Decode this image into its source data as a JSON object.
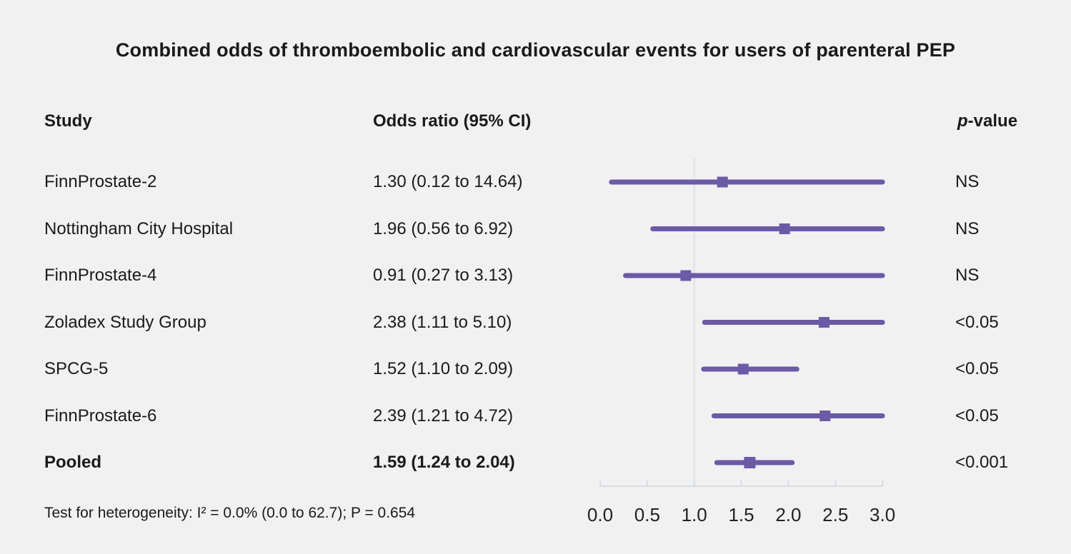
{
  "title": "Combined odds of thromboembolic and cardiovascular events for users of parenteral PEP",
  "columns": {
    "study": "Study",
    "odds_ratio": "Odds ratio (95% CI)",
    "p_italic": "p",
    "p_rest": "-value"
  },
  "rows": [
    {
      "study": "FinnProstate-2",
      "or_ci": "1.30 (0.12 to 14.64)",
      "p": "NS",
      "bold": false
    },
    {
      "study": "Nottingham City Hospital",
      "or_ci": "1.96 (0.56 to 6.92)",
      "p": "NS",
      "bold": false
    },
    {
      "study": "FinnProstate-4",
      "or_ci": "0.91 (0.27 to 3.13)",
      "p": "NS",
      "bold": false
    },
    {
      "study": "Zoladex Study Group",
      "or_ci": "2.38 (1.11 to 5.10)",
      "p": "<0.05",
      "bold": false
    },
    {
      "study": "SPCG-5",
      "or_ci": "1.52 (1.10 to 2.09)",
      "p": "<0.05",
      "bold": false
    },
    {
      "study": "FinnProstate-6",
      "or_ci": "2.39 (1.21 to 4.72)",
      "p": "<0.05",
      "bold": false
    },
    {
      "study": "Pooled",
      "or_ci": "1.59 (1.24 to 2.04)",
      "p": "<0.001",
      "bold": true
    }
  ],
  "footnote": "Test for heterogeneity: I² = 0.0% (0.0 to 62.7); P = 0.654",
  "chart_data": {
    "type": "scatter",
    "variant": "forest-plot",
    "title": "Combined odds of thromboembolic and cardiovascular events for users of parenteral PEP",
    "points": [
      {
        "label": "FinnProstate-2",
        "or": 1.3,
        "ci_low": 0.12,
        "ci_high": 14.64,
        "p_value": "NS"
      },
      {
        "label": "Nottingham City Hospital",
        "or": 1.96,
        "ci_low": 0.56,
        "ci_high": 6.92,
        "p_value": "NS"
      },
      {
        "label": "FinnProstate-4",
        "or": 0.91,
        "ci_low": 0.27,
        "ci_high": 3.13,
        "p_value": "NS"
      },
      {
        "label": "Zoladex Study Group",
        "or": 2.38,
        "ci_low": 1.11,
        "ci_high": 5.1,
        "p_value": "<0.05"
      },
      {
        "label": "SPCG-5",
        "or": 1.52,
        "ci_low": 1.1,
        "ci_high": 2.09,
        "p_value": "<0.05"
      },
      {
        "label": "FinnProstate-6",
        "or": 2.39,
        "ci_low": 1.21,
        "ci_high": 4.72,
        "p_value": "<0.05"
      },
      {
        "label": "Pooled",
        "or": 1.59,
        "ci_low": 1.24,
        "ci_high": 2.04,
        "p_value": "<0.001"
      }
    ],
    "x_axis": {
      "ticks": [
        0.0,
        0.5,
        1.0,
        1.5,
        2.0,
        2.5,
        3.0
      ],
      "range": [
        0.0,
        3.0
      ],
      "reference_line": 1.0,
      "tick_label_format": "one-decimal"
    },
    "heterogeneity": "Test for heterogeneity: I² = 0.0% (0.0 to 62.7); P = 0.654",
    "legend_position": "none",
    "grid": false
  },
  "colors": {
    "marker": "#6b5aa6",
    "background": "#f1f1f1",
    "reference_line": "#dde1e7",
    "axis_line": "#d7dce2",
    "text": "#1a1a1a"
  }
}
